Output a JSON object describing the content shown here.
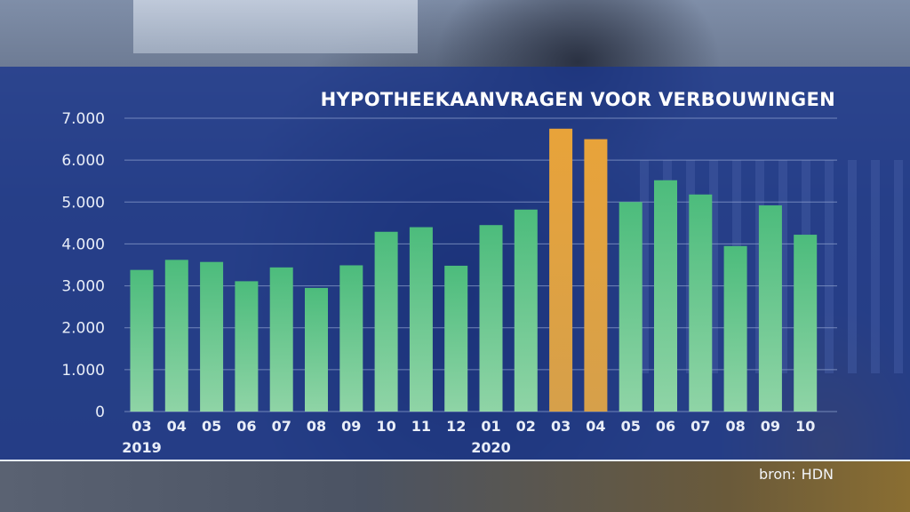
{
  "title": "HYPOTHEEKAANVRAGEN VOOR VERBOUWINGEN",
  "source": {
    "label": "bron:",
    "value": "HDN"
  },
  "colors": {
    "normal": "#4cbc7c",
    "highlight": "#e8a33a",
    "grid": "#8c9fcc",
    "panel": "#1b378c"
  },
  "chart_data": {
    "type": "bar",
    "title": "HYPOTHEEKAANVRAGEN VOOR VERBOUWINGEN",
    "xlabel": "",
    "ylabel": "",
    "ylim": [
      0,
      7000
    ],
    "yticks": [
      "0",
      "1.000",
      "2.000",
      "3.000",
      "4.000",
      "5.000",
      "6.000",
      "7.000"
    ],
    "ytick_values": [
      0,
      1000,
      2000,
      3000,
      4000,
      5000,
      6000,
      7000
    ],
    "grid": true,
    "categories": [
      "03",
      "04",
      "05",
      "06",
      "07",
      "08",
      "09",
      "10",
      "11",
      "12",
      "01",
      "02",
      "03",
      "04",
      "05",
      "06",
      "07",
      "08",
      "09",
      "10"
    ],
    "year_labels": [
      {
        "index": 0,
        "text": "2019"
      },
      {
        "index": 10,
        "text": "2020"
      }
    ],
    "values": [
      3380,
      3620,
      3570,
      3110,
      3440,
      2950,
      3490,
      4290,
      4400,
      3480,
      4450,
      4820,
      6750,
      6500,
      5000,
      5520,
      5180,
      3950,
      4920,
      4220
    ],
    "highlighted": [
      12,
      13
    ]
  }
}
